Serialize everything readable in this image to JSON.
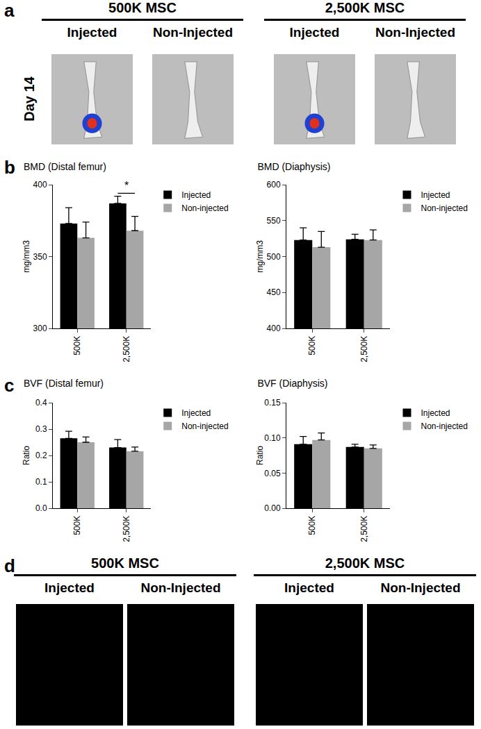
{
  "panel_labels": [
    "a",
    "b",
    "c",
    "d"
  ],
  "panel_a": {
    "row_label": "Day 14",
    "groups": [
      {
        "title": "500K MSC",
        "columns": [
          "Injected",
          "Non-Injected"
        ]
      },
      {
        "title": "2,500K MSC",
        "columns": [
          "Injected",
          "Non-Injected"
        ]
      }
    ]
  },
  "panel_d": {
    "groups": [
      {
        "title": "500K MSC",
        "columns": [
          "Injected",
          "Non-Injected"
        ]
      },
      {
        "title": "2,500K MSC",
        "columns": [
          "Injected",
          "Non-Injected"
        ]
      }
    ]
  },
  "chart_data": [
    {
      "type": "bar",
      "title": "BMD (Distal femur)",
      "y_label": "mg/mm3",
      "categories": [
        "500K",
        "2,500K"
      ],
      "series": [
        {
          "name": "Injected",
          "color": "#000000",
          "values": [
            373,
            387
          ],
          "errors": [
            11,
            5
          ]
        },
        {
          "name": "Non-injected",
          "color": "#a6a6a6",
          "values": [
            363,
            368
          ],
          "errors": [
            11,
            10
          ]
        }
      ],
      "ylim": [
        300,
        400
      ],
      "yticks": [
        300,
        350,
        400
      ],
      "grid": false,
      "legend": "right",
      "annotations": [
        {
          "text": "*",
          "category": "2,500K"
        }
      ]
    },
    {
      "type": "bar",
      "title": "BMD (Diaphysis)",
      "y_label": "mg/mm3",
      "categories": [
        "500K",
        "2,500K"
      ],
      "series": [
        {
          "name": "Injected",
          "color": "#000000",
          "values": [
            523,
            524
          ],
          "errors": [
            17,
            7
          ]
        },
        {
          "name": "Non-injected",
          "color": "#a6a6a6",
          "values": [
            513,
            523
          ],
          "errors": [
            22,
            14
          ]
        }
      ],
      "ylim": [
        400,
        600
      ],
      "yticks": [
        400,
        450,
        500,
        550,
        600
      ],
      "grid": false,
      "legend": "right"
    },
    {
      "type": "bar",
      "title": "BVF (Distal femur)",
      "y_label": "Ratio",
      "categories": [
        "500K",
        "2,500K"
      ],
      "series": [
        {
          "name": "Injected",
          "color": "#000000",
          "values": [
            0.265,
            0.23
          ],
          "errors": [
            0.027,
            0.03
          ]
        },
        {
          "name": "Non-injected",
          "color": "#a6a6a6",
          "values": [
            0.25,
            0.216
          ],
          "errors": [
            0.02,
            0.016
          ]
        }
      ],
      "ylim": [
        0,
        0.4
      ],
      "yticks": [
        {
          "value": 0,
          "label": "0.0"
        },
        0.1,
        0.2,
        0.3,
        0.4
      ],
      "grid": false,
      "legend": "right"
    },
    {
      "type": "bar",
      "title": "BVF (Diaphysis)",
      "y_label": "Ratio",
      "categories": [
        "500K",
        "2,500K"
      ],
      "series": [
        {
          "name": "Injected",
          "color": "#000000",
          "values": [
            0.091,
            0.087
          ],
          "errors": [
            0.011,
            0.004
          ]
        },
        {
          "name": "Non-injected",
          "color": "#a6a6a6",
          "values": [
            0.097,
            0.085
          ],
          "errors": [
            0.01,
            0.005
          ]
        }
      ],
      "ylim": [
        0,
        0.15
      ],
      "yticks": [
        {
          "value": 0,
          "label": "0.00"
        },
        0.05,
        {
          "value": 0.1,
          "label": "0.10"
        },
        0.15
      ],
      "grid": false,
      "legend": "right"
    }
  ]
}
